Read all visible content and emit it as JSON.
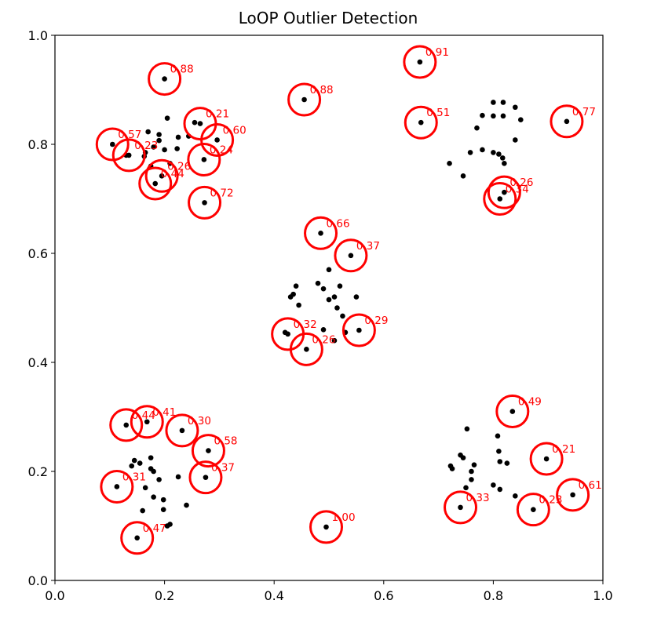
{
  "chart_data": {
    "type": "scatter",
    "title": "LoOP Outlier Detection",
    "xlabel": "",
    "ylabel": "",
    "xlim": [
      0.0,
      1.0
    ],
    "ylim": [
      0.0,
      1.0
    ],
    "x_ticks": [
      "0.0",
      "0.2",
      "0.4",
      "0.6",
      "0.8",
      "1.0"
    ],
    "y_ticks": [
      "0.0",
      "0.2",
      "0.4",
      "0.6",
      "0.8",
      "1.0"
    ],
    "grid": false,
    "colors": {
      "points": "#000000",
      "outlier_circles": "#ff0000",
      "labels": "#ff0000"
    },
    "points": [
      [
        0.17,
        0.823
      ],
      [
        0.19,
        0.818
      ],
      [
        0.205,
        0.848
      ],
      [
        0.225,
        0.813
      ],
      [
        0.19,
        0.807
      ],
      [
        0.18,
        0.795
      ],
      [
        0.165,
        0.785
      ],
      [
        0.163,
        0.778
      ],
      [
        0.2,
        0.79
      ],
      [
        0.223,
        0.792
      ],
      [
        0.13,
        0.78
      ],
      [
        0.175,
        0.76
      ],
      [
        0.21,
        0.765
      ],
      [
        0.255,
        0.84
      ],
      [
        0.244,
        0.815
      ],
      [
        0.758,
        0.785
      ],
      [
        0.77,
        0.83
      ],
      [
        0.78,
        0.853
      ],
      [
        0.8,
        0.852
      ],
      [
        0.8,
        0.877
      ],
      [
        0.818,
        0.877
      ],
      [
        0.818,
        0.852
      ],
      [
        0.84,
        0.868
      ],
      [
        0.85,
        0.845
      ],
      [
        0.84,
        0.808
      ],
      [
        0.78,
        0.79
      ],
      [
        0.8,
        0.785
      ],
      [
        0.81,
        0.782
      ],
      [
        0.817,
        0.775
      ],
      [
        0.82,
        0.765
      ],
      [
        0.72,
        0.765
      ],
      [
        0.745,
        0.742
      ],
      [
        0.43,
        0.52
      ],
      [
        0.44,
        0.54
      ],
      [
        0.445,
        0.505
      ],
      [
        0.435,
        0.525
      ],
      [
        0.48,
        0.545
      ],
      [
        0.49,
        0.535
      ],
      [
        0.5,
        0.515
      ],
      [
        0.51,
        0.52
      ],
      [
        0.52,
        0.54
      ],
      [
        0.5,
        0.57
      ],
      [
        0.515,
        0.5
      ],
      [
        0.525,
        0.485
      ],
      [
        0.55,
        0.52
      ],
      [
        0.49,
        0.46
      ],
      [
        0.51,
        0.44
      ],
      [
        0.53,
        0.455
      ],
      [
        0.42,
        0.455
      ],
      [
        0.14,
        0.21
      ],
      [
        0.145,
        0.22
      ],
      [
        0.155,
        0.215
      ],
      [
        0.175,
        0.225
      ],
      [
        0.175,
        0.205
      ],
      [
        0.18,
        0.2
      ],
      [
        0.19,
        0.185
      ],
      [
        0.165,
        0.17
      ],
      [
        0.225,
        0.19
      ],
      [
        0.18,
        0.153
      ],
      [
        0.198,
        0.148
      ],
      [
        0.198,
        0.13
      ],
      [
        0.16,
        0.128
      ],
      [
        0.24,
        0.138
      ],
      [
        0.21,
        0.103
      ],
      [
        0.205,
        0.1
      ],
      [
        0.722,
        0.21
      ],
      [
        0.725,
        0.205
      ],
      [
        0.74,
        0.23
      ],
      [
        0.745,
        0.225
      ],
      [
        0.752,
        0.278
      ],
      [
        0.76,
        0.2
      ],
      [
        0.765,
        0.212
      ],
      [
        0.76,
        0.185
      ],
      [
        0.75,
        0.17
      ],
      [
        0.808,
        0.265
      ],
      [
        0.81,
        0.237
      ],
      [
        0.812,
        0.218
      ],
      [
        0.825,
        0.215
      ],
      [
        0.8,
        0.175
      ],
      [
        0.812,
        0.167
      ],
      [
        0.84,
        0.155
      ]
    ],
    "outliers": [
      {
        "x": 0.2,
        "y": 0.92,
        "score": "0.88"
      },
      {
        "x": 0.455,
        "y": 0.882,
        "score": "0.88"
      },
      {
        "x": 0.666,
        "y": 0.951,
        "score": "0.91"
      },
      {
        "x": 0.668,
        "y": 0.84,
        "score": "0.51"
      },
      {
        "x": 0.934,
        "y": 0.842,
        "score": "0.77"
      },
      {
        "x": 0.105,
        "y": 0.8,
        "score": "0.57"
      },
      {
        "x": 0.135,
        "y": 0.78,
        "score": "0.23"
      },
      {
        "x": 0.265,
        "y": 0.838,
        "score": "0.21"
      },
      {
        "x": 0.296,
        "y": 0.808,
        "score": "0.60"
      },
      {
        "x": 0.272,
        "y": 0.772,
        "score": "0.24"
      },
      {
        "x": 0.195,
        "y": 0.742,
        "score": "0.26"
      },
      {
        "x": 0.183,
        "y": 0.728,
        "score": "0.44"
      },
      {
        "x": 0.273,
        "y": 0.693,
        "score": "0.72"
      },
      {
        "x": 0.82,
        "y": 0.712,
        "score": "0.26"
      },
      {
        "x": 0.812,
        "y": 0.7,
        "score": "0.34"
      },
      {
        "x": 0.485,
        "y": 0.637,
        "score": "0.66"
      },
      {
        "x": 0.54,
        "y": 0.596,
        "score": "0.37"
      },
      {
        "x": 0.425,
        "y": 0.452,
        "score": "0.32"
      },
      {
        "x": 0.459,
        "y": 0.424,
        "score": "0.26"
      },
      {
        "x": 0.555,
        "y": 0.459,
        "score": "0.29"
      },
      {
        "x": 0.13,
        "y": 0.285,
        "score": "0.44"
      },
      {
        "x": 0.168,
        "y": 0.291,
        "score": "0.41"
      },
      {
        "x": 0.232,
        "y": 0.275,
        "score": "0.30"
      },
      {
        "x": 0.28,
        "y": 0.238,
        "score": "0.58"
      },
      {
        "x": 0.275,
        "y": 0.189,
        "score": "0.37"
      },
      {
        "x": 0.113,
        "y": 0.172,
        "score": "0.31"
      },
      {
        "x": 0.15,
        "y": 0.078,
        "score": "0.47"
      },
      {
        "x": 0.495,
        "y": 0.098,
        "score": "1.00"
      },
      {
        "x": 0.835,
        "y": 0.31,
        "score": "0.49"
      },
      {
        "x": 0.897,
        "y": 0.223,
        "score": "0.21"
      },
      {
        "x": 0.945,
        "y": 0.157,
        "score": "0.61"
      },
      {
        "x": 0.74,
        "y": 0.134,
        "score": "0.33"
      },
      {
        "x": 0.873,
        "y": 0.13,
        "score": "0.23"
      }
    ]
  }
}
